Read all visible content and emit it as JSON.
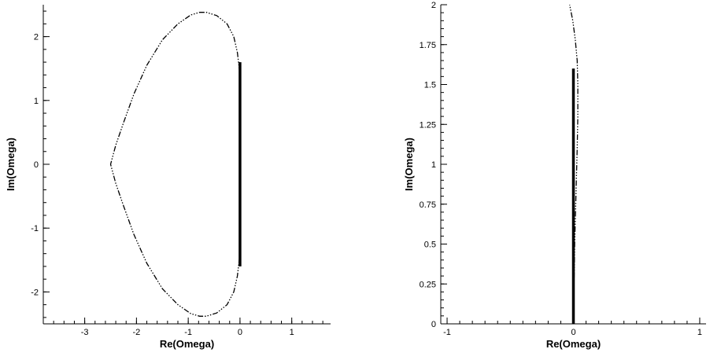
{
  "chart_data": [
    {
      "type": "line",
      "xlabel": "Re(Omega)",
      "ylabel": "Im(Omega)",
      "xlim": [
        -3.8,
        1.75
      ],
      "ylim": [
        -2.5,
        2.5
      ],
      "x_ticks": [
        -3,
        -2,
        -1,
        0,
        1
      ],
      "y_ticks": [
        -2,
        -1,
        0,
        1,
        2
      ],
      "grid": false,
      "series": [
        {
          "style": "dash-dot-dot",
          "x": [
            -0.02,
            0.0,
            -0.05,
            -0.12,
            -0.25,
            -0.45,
            -0.65,
            -0.78,
            -0.95,
            -1.2,
            -1.5,
            -1.8,
            -2.05,
            -2.25,
            -2.4,
            -2.5,
            -2.4,
            -2.25,
            -2.05,
            -1.8,
            -1.5,
            -1.2,
            -0.95,
            -0.78,
            -0.65,
            -0.45,
            -0.25,
            -0.12,
            -0.05,
            0.0,
            -0.02
          ],
          "y": [
            1.6,
            1.4,
            1.75,
            2.0,
            2.2,
            2.33,
            2.38,
            2.38,
            2.34,
            2.2,
            1.95,
            1.55,
            1.1,
            0.65,
            0.3,
            0.0,
            -0.3,
            -0.65,
            -1.1,
            -1.55,
            -1.95,
            -2.2,
            -2.34,
            -2.38,
            -2.38,
            -2.33,
            -2.2,
            -2.0,
            -1.75,
            -1.4,
            -1.6
          ]
        },
        {
          "style": "solid-thick",
          "x": [
            0.0,
            0.0
          ],
          "y": [
            -1.6,
            1.6
          ]
        }
      ]
    },
    {
      "type": "line",
      "xlabel": "Re(Omega)",
      "ylabel": "Im(Omega)",
      "xlim": [
        -1.05,
        1.05
      ],
      "ylim": [
        0,
        2
      ],
      "x_ticks": [
        -1,
        0,
        1
      ],
      "y_ticks": [
        0,
        0.25,
        0.5,
        0.75,
        1,
        1.25,
        1.5,
        1.75,
        2
      ],
      "y_tick_labels": [
        "0",
        "0.25",
        "0.5",
        "0.75",
        "1",
        "1.25",
        "1.5",
        "1.75",
        "2"
      ],
      "grid": false,
      "series": [
        {
          "style": "dash-dot-dot",
          "x": [
            0.0,
            0.01,
            0.02,
            0.03,
            0.035,
            0.035,
            0.03,
            0.015,
            -0.005,
            -0.03
          ],
          "y": [
            0.0,
            0.5,
            0.8,
            1.1,
            1.3,
            1.5,
            1.65,
            1.78,
            1.9,
            2.0
          ]
        },
        {
          "style": "solid-thick",
          "x": [
            0.0,
            0.0
          ],
          "y": [
            0.0,
            1.6
          ]
        }
      ]
    }
  ]
}
